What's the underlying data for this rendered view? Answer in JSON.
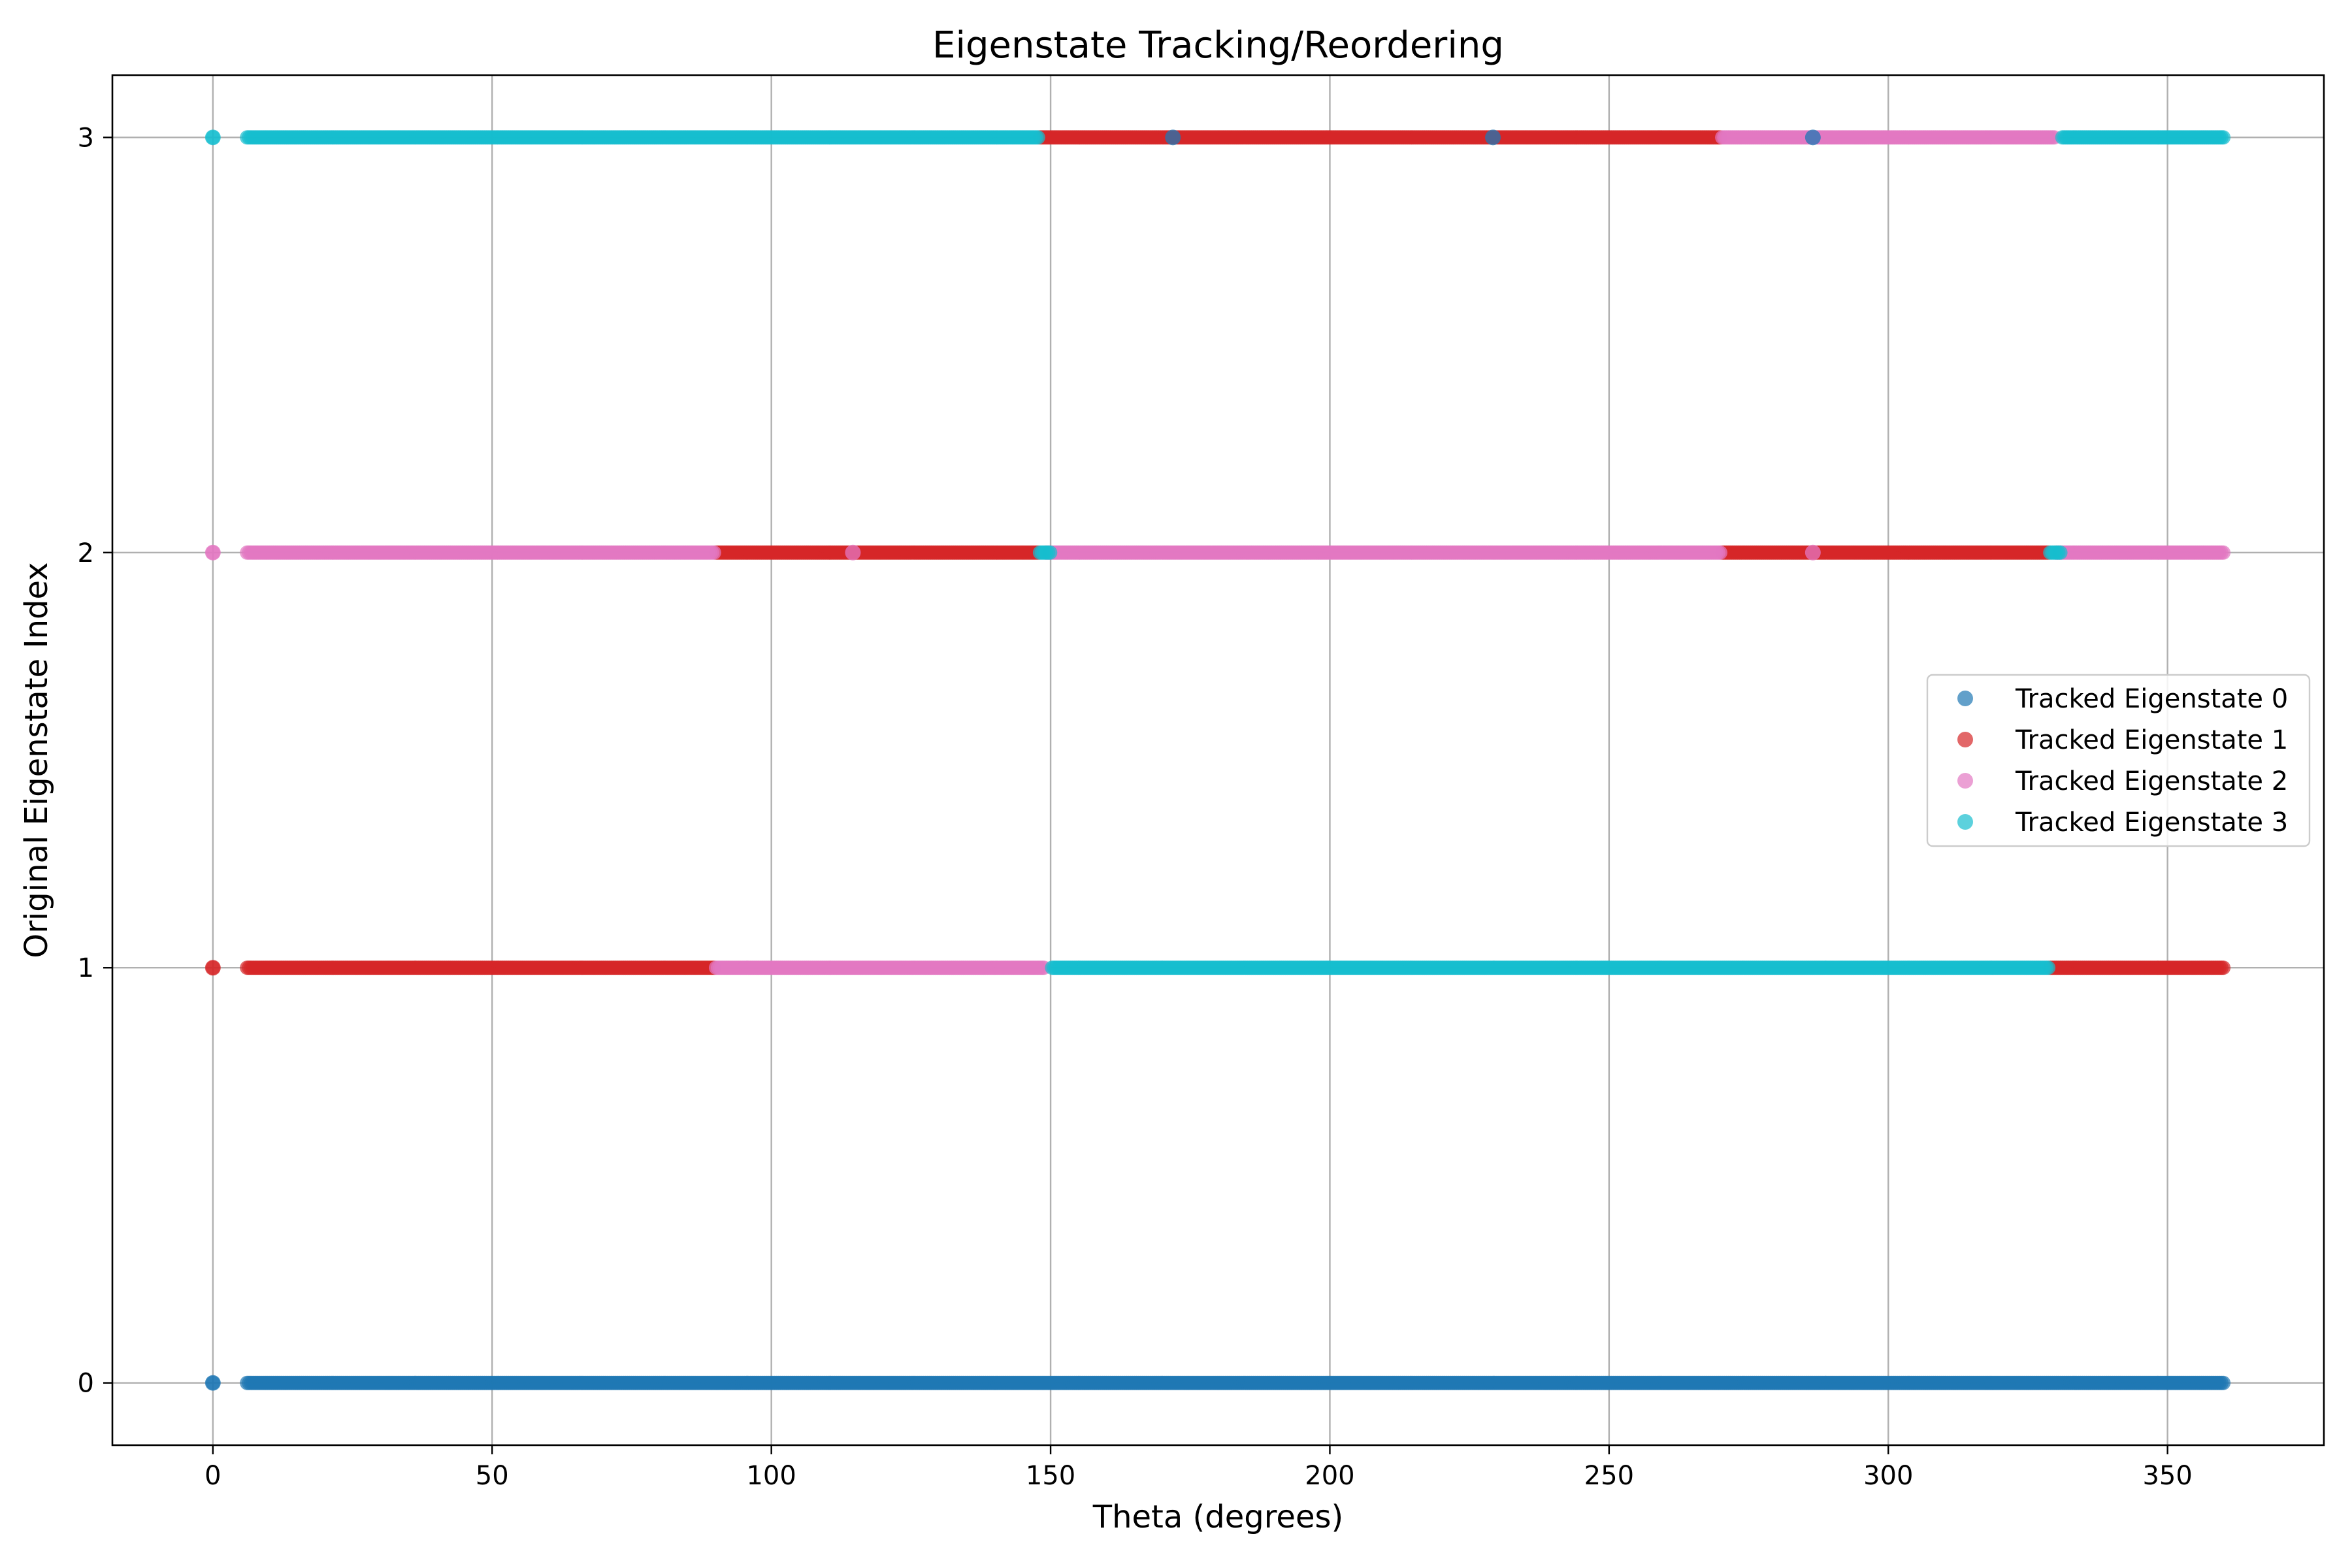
{
  "chart_data": {
    "type": "scatter",
    "title": "Eigenstate Tracking/Reordering",
    "xlabel": "Theta (degrees)",
    "ylabel": "Original Eigenstate Index",
    "xlim": [
      -18,
      378
    ],
    "ylim": [
      -0.15,
      3.15
    ],
    "xticks": [
      0,
      50,
      100,
      150,
      200,
      250,
      300,
      350
    ],
    "yticks": [
      0,
      1,
      2,
      3
    ],
    "grid": true,
    "legend_position": "center-right",
    "theta_range": [
      0,
      360
    ],
    "sample_count": 1000,
    "series": [
      {
        "name": "Tracked Eigenstate 0",
        "color": "#1f77b4",
        "segments": [
          {
            "x_start": 0,
            "x_end": 360,
            "y": 0
          }
        ]
      },
      {
        "name": "Tracked Eigenstate 1",
        "color": "#d62728",
        "segments": [
          {
            "x_start": 0,
            "x_end": 90,
            "y": 1
          },
          {
            "x_start": 90,
            "x_end": 148,
            "y": 2
          },
          {
            "x_start": 148,
            "x_end": 270,
            "y": 3
          },
          {
            "x_start": 270,
            "x_end": 329,
            "y": 2
          },
          {
            "x_start": 329,
            "x_end": 360,
            "y": 1
          }
        ]
      },
      {
        "name": "Tracked Eigenstate 2",
        "color": "#e377c2",
        "segments": [
          {
            "x_start": 0,
            "x_end": 90,
            "y": 2
          },
          {
            "x_start": 90,
            "x_end": 149,
            "y": 1
          },
          {
            "x_start": 149,
            "x_end": 270,
            "y": 2
          },
          {
            "x_start": 270,
            "x_end": 330,
            "y": 3
          },
          {
            "x_start": 330,
            "x_end": 360,
            "y": 2
          }
        ]
      },
      {
        "name": "Tracked Eigenstate 3",
        "color": "#17becf",
        "segments": [
          {
            "x_start": 0,
            "x_end": 148,
            "y": 3
          },
          {
            "x_start": 148,
            "x_end": 150,
            "y": 2
          },
          {
            "x_start": 150,
            "x_end": 329,
            "y": 1
          },
          {
            "x_start": 329,
            "x_end": 331,
            "y": 2
          },
          {
            "x_start": 331,
            "x_end": 360,
            "y": 3
          }
        ]
      }
    ],
    "isolated_points": [
      {
        "series": 0,
        "x": 0,
        "y": 0
      },
      {
        "series": 1,
        "x": 0,
        "y": 1
      },
      {
        "series": 2,
        "x": 0,
        "y": 2
      },
      {
        "series": 3,
        "x": 0,
        "y": 3
      },
      {
        "series": 2,
        "x": 114.6,
        "y": 2
      },
      {
        "series": 0,
        "x": 171.9,
        "y": 3
      },
      {
        "series": 0,
        "x": 229.2,
        "y": 3
      },
      {
        "series": 0,
        "x": 286.5,
        "y": 3
      },
      {
        "series": 2,
        "x": 286.5,
        "y": 2
      }
    ]
  }
}
